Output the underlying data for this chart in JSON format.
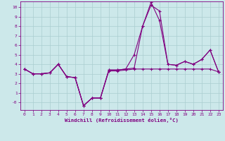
{
  "xlabel": "Windchill (Refroidissement éolien,°C)",
  "background_color": "#cce8ea",
  "grid_color": "#aacdd0",
  "line_color": "#800080",
  "spine_color": "#800080",
  "xlim": [
    -0.5,
    23.5
  ],
  "ylim": [
    -0.8,
    10.6
  ],
  "ytick_vals": [
    0,
    1,
    2,
    3,
    4,
    5,
    6,
    7,
    8,
    9,
    10
  ],
  "ytick_labels": [
    "-0",
    "1",
    "2",
    "3",
    "4",
    "5",
    "6",
    "7",
    "8",
    "9",
    "10"
  ],
  "xticks": [
    0,
    1,
    2,
    3,
    4,
    5,
    6,
    7,
    8,
    9,
    10,
    11,
    12,
    13,
    14,
    15,
    16,
    17,
    18,
    19,
    20,
    21,
    22,
    23
  ],
  "series1_x": [
    0,
    1,
    2,
    3,
    4,
    5,
    6,
    7,
    8,
    9,
    10,
    11,
    12,
    13,
    14,
    15,
    16,
    17,
    18,
    19,
    20,
    21,
    22,
    23
  ],
  "series1_y": [
    3.5,
    3.0,
    3.0,
    3.1,
    4.0,
    2.7,
    2.6,
    -0.35,
    0.45,
    0.45,
    3.3,
    3.3,
    3.4,
    3.5,
    3.5,
    3.5,
    3.5,
    3.5,
    3.5,
    3.5,
    3.5,
    3.5,
    3.5,
    3.2
  ],
  "series2_x": [
    0,
    1,
    2,
    3,
    4,
    5,
    6,
    7,
    8,
    9,
    10,
    11,
    12,
    13,
    14,
    15,
    16,
    17,
    18,
    19,
    20,
    21,
    22,
    23
  ],
  "series2_y": [
    3.5,
    3.0,
    3.0,
    3.1,
    4.0,
    2.7,
    2.6,
    -0.35,
    0.45,
    0.45,
    3.4,
    3.4,
    3.5,
    3.6,
    8.0,
    10.2,
    9.6,
    4.0,
    3.9,
    4.3,
    4.0,
    4.5,
    5.5,
    3.2
  ],
  "series3_x": [
    0,
    1,
    2,
    3,
    4,
    5,
    6,
    7,
    8,
    9,
    10,
    11,
    12,
    13,
    14,
    15,
    16,
    17,
    18,
    19,
    20,
    21,
    22,
    23
  ],
  "series3_y": [
    3.5,
    3.0,
    3.0,
    3.1,
    4.0,
    2.7,
    2.6,
    -0.35,
    0.45,
    0.45,
    3.4,
    3.4,
    3.5,
    5.0,
    8.0,
    10.5,
    8.6,
    4.0,
    3.9,
    4.3,
    4.0,
    4.5,
    5.5,
    3.2
  ]
}
